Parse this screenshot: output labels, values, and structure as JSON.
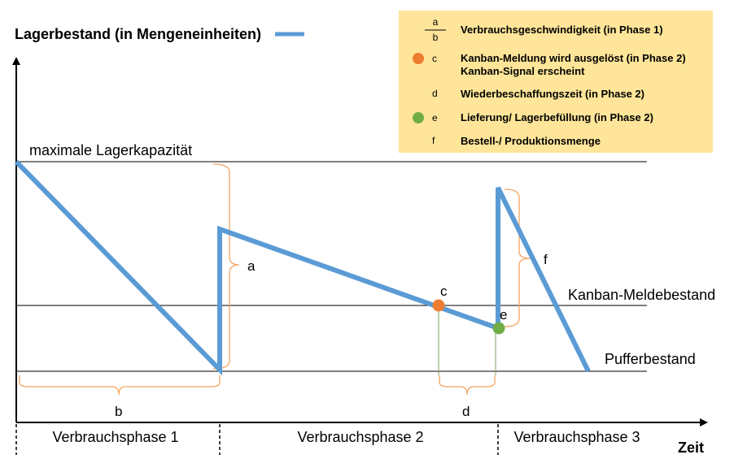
{
  "title": "Lagerbestand (in Mengeneinheiten)",
  "x_axis_label": "Zeit",
  "levels": {
    "max": "maximale Lagerkapazität",
    "kanban": "Kanban-Meldebestand",
    "buffer": "Pufferbestand"
  },
  "phases": [
    "Verbrauchsphase 1",
    "Verbrauchsphase 2",
    "Verbrauchsphase 3"
  ],
  "markers": {
    "a": "a",
    "b": "b",
    "c": "c",
    "d": "d",
    "e": "e",
    "f": "f"
  },
  "legend": {
    "fraction_top": "a",
    "fraction_bottom": "b",
    "items": [
      {
        "key": "",
        "lines": [
          "Verbrauchsgeschwindigkeit (in Phase 1)"
        ]
      },
      {
        "key": "c",
        "lines": [
          "Kanban-Meldung wird ausgelöst (in Phase 2)",
          "Kanban-Signal erscheint"
        ]
      },
      {
        "key": "d",
        "lines": [
          "Wiederbeschaffungszeit (in Phase 2)"
        ]
      },
      {
        "key": "e",
        "lines": [
          "Lieferung/ Lagerbefüllung (in Phase 2)"
        ]
      },
      {
        "key": "f",
        "lines": [
          "Bestell-/ Produktionsmenge"
        ]
      }
    ]
  },
  "colors": {
    "stock_line": "#5b9bd5",
    "brace": "#f4a460",
    "kanban_dot": "#ed7d31",
    "delivery_dot": "#70ad47",
    "legend_bg": "#ffe599"
  }
}
